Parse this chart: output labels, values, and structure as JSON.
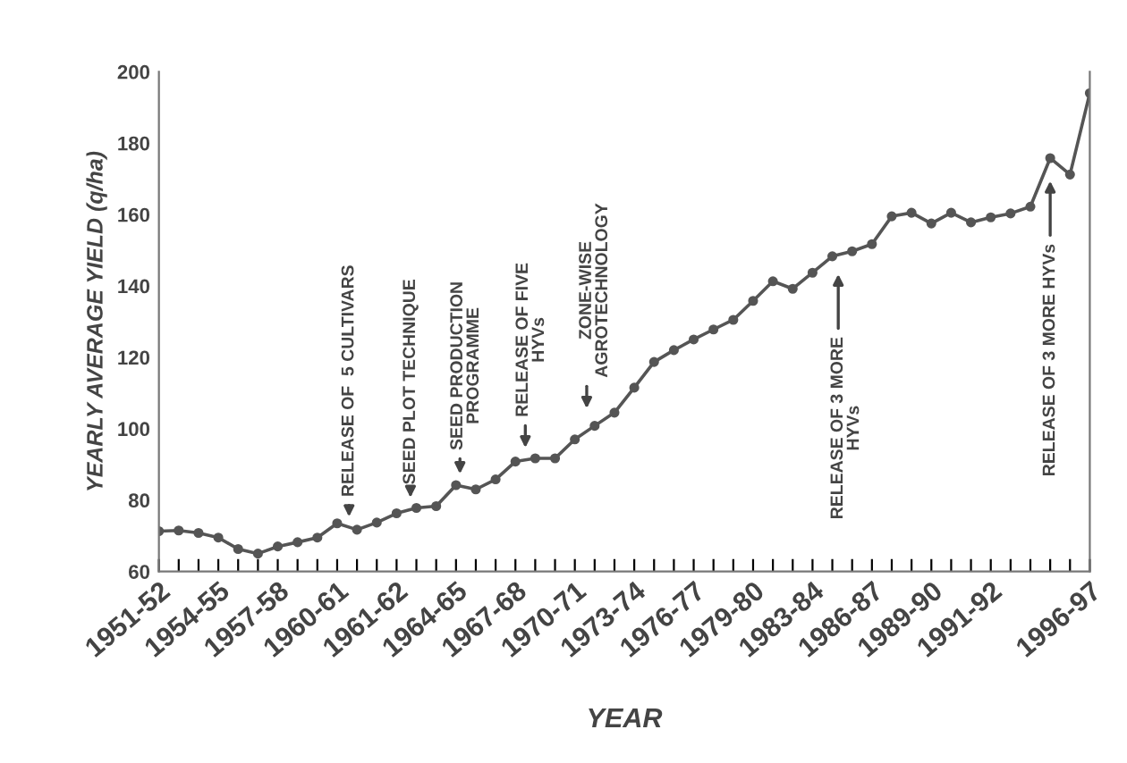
{
  "chart_data": {
    "type": "line",
    "xlabel": "YEAR",
    "ylabel": "YEARLY AVERAGE YIELD (q/ha)",
    "categories": [
      "1951-52",
      null,
      null,
      "1954-55",
      null,
      null,
      "1957-58",
      null,
      null,
      "1960-61",
      null,
      null,
      "1961-62",
      null,
      null,
      "1964-65",
      null,
      null,
      "1967-68",
      null,
      null,
      "1970-71",
      null,
      null,
      "1973-74",
      null,
      null,
      "1976-77",
      null,
      null,
      "1979-80",
      null,
      null,
      "1983-84",
      null,
      null,
      "1986-87",
      null,
      null,
      "1989-90",
      null,
      null,
      "1991-92",
      null,
      null,
      null,
      null,
      "1996-97"
    ],
    "series": [
      {
        "color": "#555555",
        "values": [
          71.3,
          71.5,
          70.8,
          69.5,
          66.3,
          65,
          67,
          68.2,
          69.5,
          73.5,
          71.7,
          73.7,
          76.3,
          77.8,
          78.3,
          84.2,
          83,
          85.8,
          90.8,
          91.7,
          91.7,
          97,
          100.8,
          104.5,
          111.5,
          118.7,
          122,
          125,
          127.8,
          130.5,
          135.8,
          141.3,
          139.2,
          143.7,
          148.3,
          149.7,
          151.7,
          159.5,
          160.5,
          157.5,
          160.5,
          157.8,
          159.2,
          160.3,
          162.2,
          175.8,
          171.2,
          194
        ]
      }
    ],
    "ylim": [
      60,
      200
    ],
    "yticks": [
      60,
      80,
      100,
      120,
      140,
      160,
      180,
      200
    ],
    "grid": false,
    "legend": false,
    "marker": "circle",
    "line_style": "solid",
    "annotations": [
      "RELEASE OF  5 CULTIVARS",
      "SEED PLOT TECHNIQUE",
      "SEED PRODUCTION\nPROGRAMME",
      "RELEASE OF FIVE\nHYVs",
      "ZONE-WISE\nAGROTECHNOLOGY",
      "RELEASE OF 3 MORE\nHYVs",
      "RELEASE OF 3 MORE HYVs"
    ]
  }
}
